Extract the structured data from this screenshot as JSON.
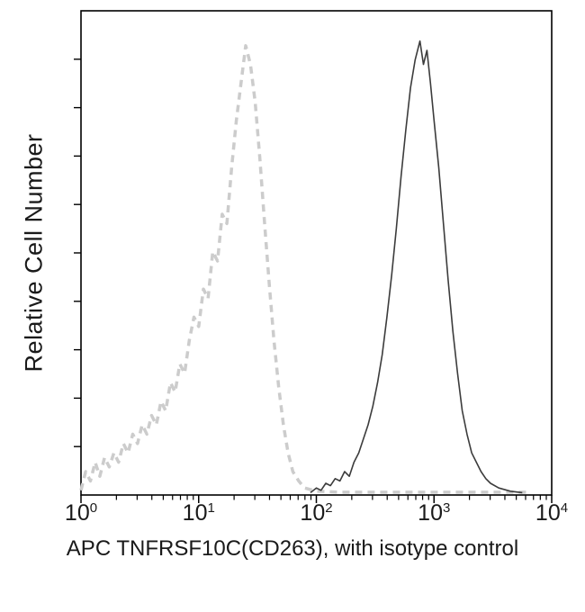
{
  "chart_data": {
    "type": "line",
    "title": "",
    "xlabel": "APC TNFRSF10C(CD263), with isotype control",
    "ylabel": "Relative Cell Number",
    "x_scale": "log",
    "x_range_log10": [
      0,
      4
    ],
    "x_tick_base": "10",
    "x_tick_exponents": [
      0,
      1,
      2,
      3,
      4
    ],
    "y_tick_count": 9,
    "ylim": [
      0,
      100
    ],
    "grid": false,
    "legend": "none",
    "axis_color": "#000000",
    "series": [
      {
        "name": "isotype control",
        "style": "dashed",
        "color": "#cccccc",
        "stroke_width": 3.5,
        "dash": "8 6",
        "peak_x_approx": 25,
        "points_log10x_y": [
          [
            0.0,
            1
          ],
          [
            0.04,
            5
          ],
          [
            0.08,
            3
          ],
          [
            0.12,
            7
          ],
          [
            0.16,
            4
          ],
          [
            0.2,
            8
          ],
          [
            0.24,
            6
          ],
          [
            0.28,
            9
          ],
          [
            0.32,
            7
          ],
          [
            0.36,
            11
          ],
          [
            0.4,
            9
          ],
          [
            0.44,
            13
          ],
          [
            0.48,
            11
          ],
          [
            0.52,
            15
          ],
          [
            0.56,
            13
          ],
          [
            0.6,
            17
          ],
          [
            0.64,
            15
          ],
          [
            0.68,
            20
          ],
          [
            0.72,
            18
          ],
          [
            0.76,
            24
          ],
          [
            0.8,
            22
          ],
          [
            0.84,
            28
          ],
          [
            0.88,
            26
          ],
          [
            0.92,
            33
          ],
          [
            0.96,
            38
          ],
          [
            1.0,
            36
          ],
          [
            1.04,
            44
          ],
          [
            1.08,
            42
          ],
          [
            1.12,
            52
          ],
          [
            1.16,
            50
          ],
          [
            1.2,
            60
          ],
          [
            1.24,
            58
          ],
          [
            1.28,
            70
          ],
          [
            1.32,
            80
          ],
          [
            1.36,
            88
          ],
          [
            1.4,
            96
          ],
          [
            1.44,
            92
          ],
          [
            1.48,
            84
          ],
          [
            1.52,
            72
          ],
          [
            1.56,
            58
          ],
          [
            1.6,
            45
          ],
          [
            1.64,
            33
          ],
          [
            1.68,
            23
          ],
          [
            1.72,
            15
          ],
          [
            1.76,
            9
          ],
          [
            1.8,
            5
          ],
          [
            1.85,
            3
          ],
          [
            1.9,
            1.5
          ],
          [
            2.0,
            0.8
          ],
          [
            2.2,
            0.6
          ],
          [
            2.6,
            0.6
          ],
          [
            3.0,
            0.6
          ],
          [
            3.4,
            0.6
          ],
          [
            3.8,
            0.6
          ]
        ]
      },
      {
        "name": "APC TNFRSF10C(CD263)",
        "style": "solid",
        "color": "#3c3c3c",
        "stroke_width": 1.6,
        "dash": "",
        "peak_x_approx": 760,
        "points_log10x_y": [
          [
            1.95,
            0.5
          ],
          [
            2.0,
            1.5
          ],
          [
            2.04,
            1
          ],
          [
            2.08,
            2.5
          ],
          [
            2.12,
            2
          ],
          [
            2.16,
            3.5
          ],
          [
            2.2,
            3
          ],
          [
            2.24,
            5
          ],
          [
            2.28,
            4
          ],
          [
            2.32,
            7
          ],
          [
            2.36,
            9
          ],
          [
            2.4,
            12
          ],
          [
            2.44,
            15
          ],
          [
            2.48,
            19
          ],
          [
            2.52,
            24
          ],
          [
            2.56,
            30
          ],
          [
            2.6,
            38
          ],
          [
            2.64,
            47
          ],
          [
            2.68,
            57
          ],
          [
            2.72,
            68
          ],
          [
            2.76,
            78
          ],
          [
            2.8,
            87
          ],
          [
            2.84,
            93
          ],
          [
            2.88,
            97
          ],
          [
            2.91,
            92
          ],
          [
            2.94,
            95
          ],
          [
            2.97,
            88
          ],
          [
            3.0,
            80
          ],
          [
            3.04,
            70
          ],
          [
            3.08,
            58
          ],
          [
            3.12,
            46
          ],
          [
            3.16,
            35
          ],
          [
            3.2,
            26
          ],
          [
            3.24,
            18
          ],
          [
            3.28,
            13
          ],
          [
            3.32,
            9
          ],
          [
            3.36,
            7
          ],
          [
            3.4,
            5
          ],
          [
            3.44,
            3.5
          ],
          [
            3.48,
            2.5
          ],
          [
            3.55,
            1.5
          ],
          [
            3.65,
            0.8
          ],
          [
            3.75,
            0.5
          ]
        ]
      }
    ]
  }
}
